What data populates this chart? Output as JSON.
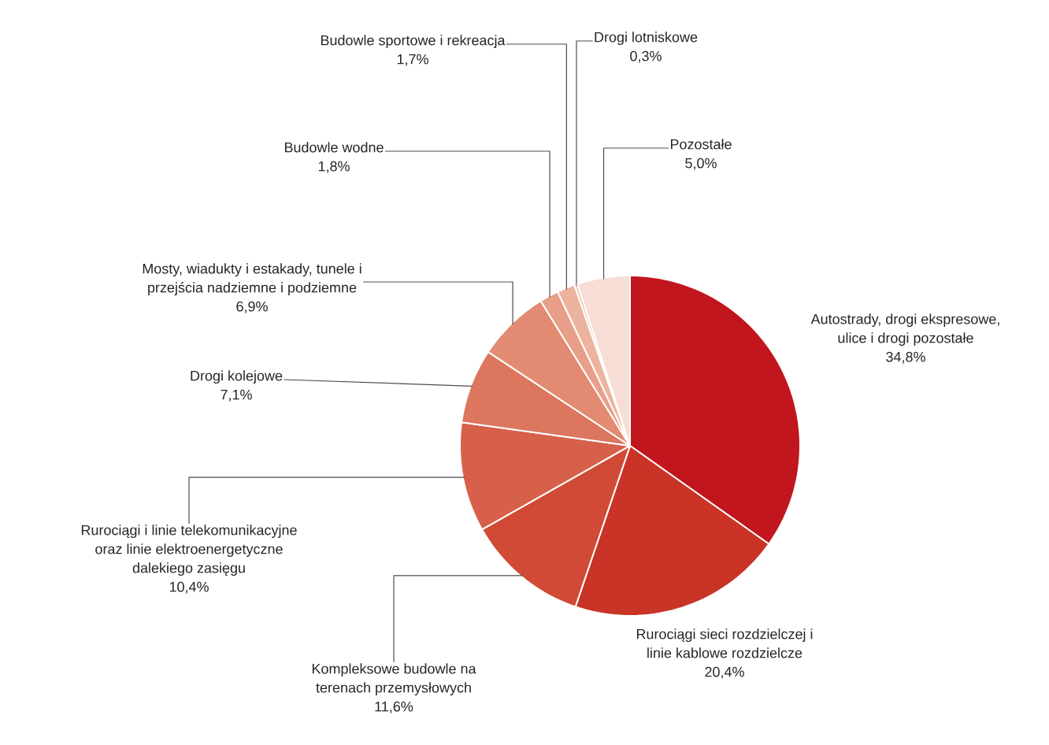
{
  "chart_data": {
    "type": "pie",
    "categories": [
      "Autostrady, drogi ekspresowe, ulice i drogi pozostałe",
      "Rurociągi sieci rozdzielczej i linie kablowe rozdzielcze",
      "Kompleksowe budowle na terenach przemysłowych",
      "Rurociągi i linie telekomunikacyjne oraz linie elektroenergetyczne dalekiego zasięgu",
      "Drogi kolejowe",
      "Mosty, wiadukty i estakady, tunele i przejścia nadziemne i podziemne",
      "Budowle wodne",
      "Budowle sportowe i rekreacja",
      "Drogi lotniskowe",
      "Pozostałe"
    ],
    "values": [
      34.8,
      20.4,
      11.6,
      10.4,
      7.1,
      6.9,
      1.8,
      1.7,
      0.3,
      5.0
    ],
    "value_labels": [
      "34,8%",
      "20,4%",
      "11,6%",
      "10,4%",
      "7,1%",
      "6,9%",
      "1,8%",
      "1,7%",
      "0,3%",
      "5,0%"
    ],
    "colors": [
      "#c1161e",
      "#c93427",
      "#d04a35",
      "#d6604a",
      "#dc765e",
      "#e28b72",
      "#e79f89",
      "#ecb49f",
      "#f0c6b6",
      "#f7ddd3"
    ]
  }
}
